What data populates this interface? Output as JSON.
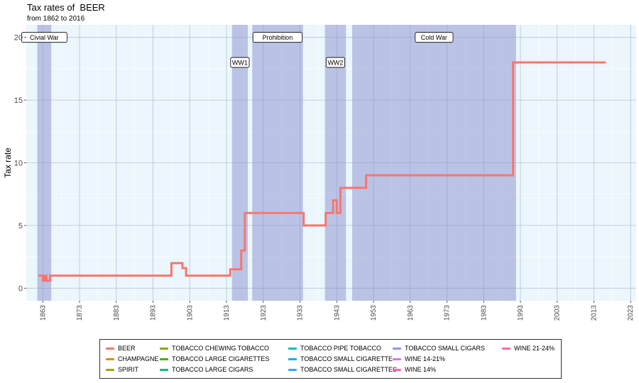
{
  "chart_data": {
    "type": "line",
    "title": "Tax rates of  BEER",
    "subtitle": "from 1862 to 2016",
    "xlabel": "",
    "ylabel": "Tax rate",
    "xlim": [
      1858.5,
      2024.5
    ],
    "ylim": [
      -1,
      21
    ],
    "x_ticks": [
      1863,
      1873,
      1883,
      1893,
      1903,
      1913,
      1923,
      1933,
      1943,
      1953,
      1963,
      1973,
      1983,
      1993,
      2003,
      2013,
      2023
    ],
    "y_ticks": [
      0,
      5,
      10,
      15,
      20
    ],
    "grid": true,
    "periods": [
      {
        "name": "Civial War",
        "start": 1861.5,
        "end": 1865.3,
        "label_y": 20
      },
      {
        "name": "WW1",
        "start": 1914.5,
        "end": 1918.8,
        "label_y": 18
      },
      {
        "name": "Prohibition",
        "start": 1920,
        "end": 1933.8,
        "label_y": 20
      },
      {
        "name": "WW2",
        "start": 1939.8,
        "end": 1945.5,
        "label_y": 18
      },
      {
        "name": "Cold War",
        "start": 1947.2,
        "end": 1991.8,
        "label_y": 20
      }
    ],
    "series": [
      {
        "name": "BEER",
        "color": "#F8766D",
        "x": [
          1862,
          1863,
          1863,
          1863.5,
          1863.5,
          1864,
          1864,
          1865,
          1865,
          1898,
          1898,
          1901,
          1901,
          1902,
          1902,
          1914,
          1914,
          1917,
          1917,
          1918,
          1918,
          1934,
          1934,
          1940,
          1940,
          1942,
          1942,
          1943,
          1943,
          1944,
          1944,
          1951,
          1951,
          1991,
          1991,
          2016
        ],
        "y": [
          1,
          1,
          0.6,
          0.6,
          1,
          1,
          0.6,
          0.6,
          1,
          1,
          2,
          2,
          1.6,
          1.6,
          1,
          1,
          1.5,
          1.5,
          3,
          3,
          6,
          6,
          5,
          5,
          6,
          6,
          7,
          7,
          6,
          6,
          8,
          8,
          9,
          9,
          18,
          18
        ]
      }
    ],
    "legend": [
      {
        "label": "BEER",
        "color": "#F8766D"
      },
      {
        "label": "CHAMPAGNE",
        "color": "#D89000"
      },
      {
        "label": "SPIRIT",
        "color": "#A3A500"
      },
      {
        "label": "TOBACCO CHEWING TOBACCO",
        "color": "#7CAE00"
      },
      {
        "label": "TOBACCO LARGE CIGARETTES",
        "color": "#39B600"
      },
      {
        "label": "TOBACCO LARGE CIGARS",
        "color": "#00BF7D"
      },
      {
        "label": "TOBACCO PIPE TOBACCO",
        "color": "#00BFC4"
      },
      {
        "label": "TOBACCO SMALL CIGARETTE",
        "color": "#00B0F6"
      },
      {
        "label": "TOBACCO SMALL CIGARETTES",
        "color": "#35A2FF"
      },
      {
        "label": "TOBACCO SMALL CIGARS",
        "color": "#9590FF"
      },
      {
        "label": "WINE 14-21%",
        "color": "#E76BF3"
      },
      {
        "label": "WINE 14%",
        "color": "#FF62BC"
      },
      {
        "label": "WINE 21-24%",
        "color": "#FF6C91"
      }
    ]
  }
}
